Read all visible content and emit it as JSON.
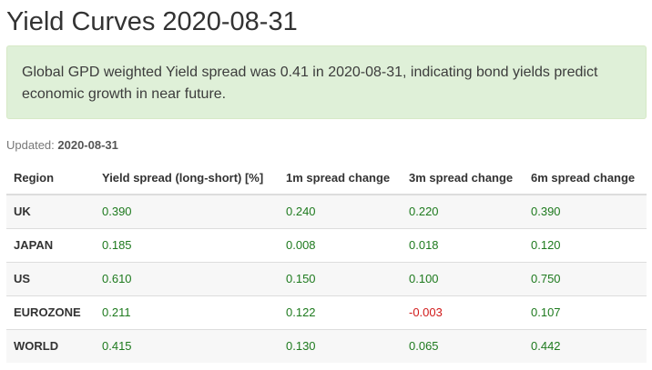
{
  "title": "Yield Curves 2020-08-31",
  "alert": {
    "text": "Global GPD weighted Yield spread was 0.41 in 2020-08-31, indicating bond yields predict economic growth in near future."
  },
  "updated": {
    "label": "Updated:",
    "value": "2020-08-31"
  },
  "table": {
    "headers": [
      "Region",
      "Yield spread (long-short) [%]",
      "1m spread change",
      "3m spread change",
      "6m spread change"
    ],
    "rows": [
      {
        "region": "UK",
        "spread": "0.390",
        "m1": "0.240",
        "m3": "0.220",
        "m6": "0.390"
      },
      {
        "region": "JAPAN",
        "spread": "0.185",
        "m1": "0.008",
        "m3": "0.018",
        "m6": "0.120"
      },
      {
        "region": "US",
        "spread": "0.610",
        "m1": "0.150",
        "m3": "0.100",
        "m6": "0.750"
      },
      {
        "region": "EUROZONE",
        "spread": "0.211",
        "m1": "0.122",
        "m3": "-0.003",
        "m6": "0.107"
      },
      {
        "region": "WORLD",
        "spread": "0.415",
        "m1": "0.130",
        "m3": "0.065",
        "m6": "0.442"
      }
    ]
  },
  "colors": {
    "positive": "#1e7a1e",
    "negative": "#d11a1a",
    "alert_background": "#dff0d8"
  }
}
